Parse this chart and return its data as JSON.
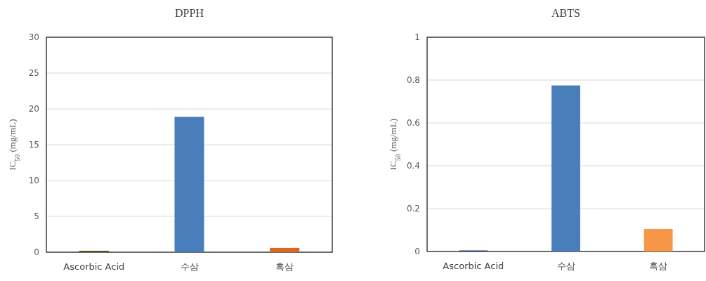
{
  "chart_data": [
    {
      "type": "bar",
      "title": "DPPH",
      "ylabel": "IC$_{50}$ (mg/mL)",
      "categories": [
        "Ascorbic Acid",
        "수삼",
        "흑삼"
      ],
      "values": [
        0.2,
        18.9,
        0.6
      ],
      "colors": [
        "#5b4a1e",
        "#4a7ebb",
        "#d9691f"
      ],
      "ylim": [
        0,
        30
      ],
      "yticks": [
        0,
        5,
        10,
        15,
        20,
        25,
        30
      ],
      "grid": "y"
    },
    {
      "type": "bar",
      "title": "ABTS",
      "ylabel": "IC$_{50}$ (mg/mL)",
      "categories": [
        "Ascorbic Acid",
        "수삼",
        "흑삼"
      ],
      "values": [
        0.005,
        0.775,
        0.105
      ],
      "colors": [
        "#2f4a7a",
        "#4a7ebb",
        "#f79646"
      ],
      "ylim": [
        0,
        1
      ],
      "yticks": [
        0,
        0.2,
        0.4,
        0.6,
        0.8,
        1
      ],
      "grid": "y"
    }
  ]
}
